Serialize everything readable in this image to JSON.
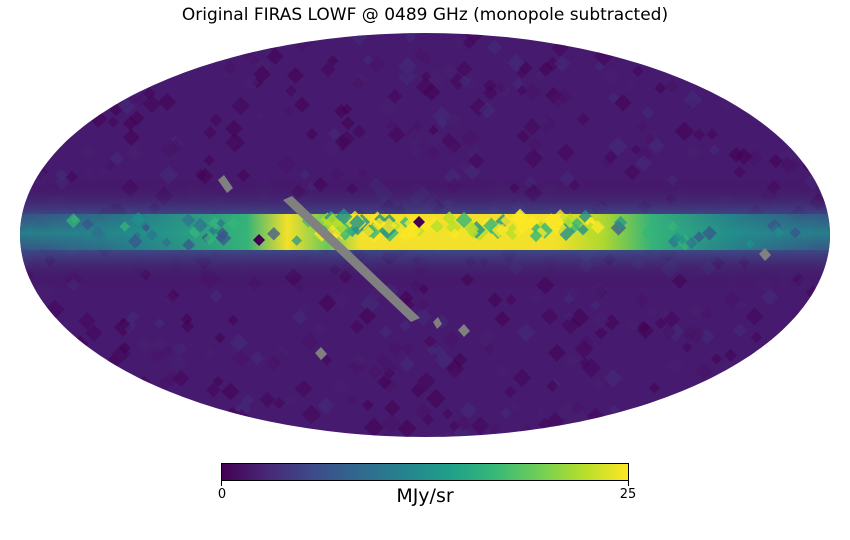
{
  "title": "Original FIRAS LOWF @ 0489 GHz (monopole subtracted)",
  "map": {
    "projection": "mollweide",
    "coordinate_system": "galactic",
    "masked_color": "#808080",
    "colormap": "viridis",
    "features": [
      "bright galactic plane band",
      "masked diagonal strip of missing pixels (gray)",
      "isolated masked pixels (gray)"
    ]
  },
  "colorbar": {
    "min_label": "0",
    "max_label": "25",
    "unit": "MJy/sr",
    "range": [
      0,
      25
    ]
  }
}
